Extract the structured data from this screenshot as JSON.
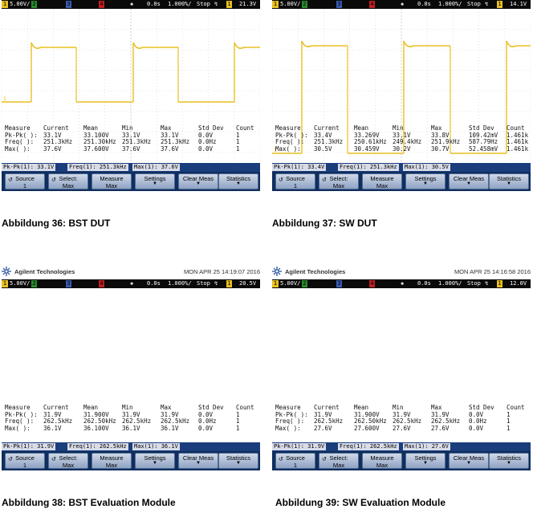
{
  "panels": [
    {
      "id": "p36",
      "brand": null,
      "topbar": {
        "ch1_scale": "5.00V/",
        "ch2": "2",
        "ch3": "3",
        "ch4": "4",
        "time_pos": "0.0s",
        "timebase": "1.000%/",
        "run_state": "Stop",
        "trig_ch": "1",
        "trig_level": "21.3V"
      },
      "measure": {
        "headers": [
          "Measure",
          "Current",
          "Mean",
          "Min",
          "Max",
          "Std Dev",
          "Count"
        ],
        "rows": [
          [
            "Pk-Pk( ):",
            "33.1V",
            "33.100V",
            "33.1V",
            "33.1V",
            "0.0V",
            "1"
          ],
          [
            "Freq( ):",
            "251.3kHz",
            "251.30kHz",
            "251.3kHz",
            "251.3kHz",
            "0.0Hz",
            "1"
          ],
          [
            "Max( ):",
            "37.6V",
            "37.600V",
            "37.6V",
            "37.6V",
            "0.0V",
            "1"
          ]
        ]
      },
      "status": [
        "Pk-Pk(1): 33.1V",
        "Freq(1): 251.3kHz",
        "Max(1): 37.6V"
      ],
      "softkeys": [
        [
          "Source",
          "1"
        ],
        [
          "Select:",
          "Max"
        ],
        [
          "Measure",
          "Max"
        ],
        [
          "Settings",
          ""
        ],
        [
          "Clear Meas",
          ""
        ],
        [
          "Statistics",
          ""
        ]
      ],
      "caption": "Abbildung 36: BST DUT"
    },
    {
      "id": "p37",
      "brand": null,
      "topbar": {
        "ch1_scale": "5.00V/",
        "ch2": "2",
        "ch3": "3",
        "ch4": "4",
        "time_pos": "0.0s",
        "timebase": "1.000%/",
        "run_state": "Stop",
        "trig_ch": "1",
        "trig_level": "14.1V"
      },
      "measure": {
        "headers": [
          "Measure",
          "Current",
          "Mean",
          "Min",
          "Max",
          "Std Dev",
          "Count"
        ],
        "rows": [
          [
            "Pk-Pk( ):",
            "33.4V",
            "33.269V",
            "33.1V",
            "33.8V",
            "109.42mV",
            "1.461k"
          ],
          [
            "Freq( ):",
            "251.3kHz",
            "250.61kHz",
            "249.4kHz",
            "251.9kHz",
            "587.79Hz",
            "1.461k"
          ],
          [
            "Max( ):",
            "30.5V",
            "30.459V",
            "30.2V",
            "30.7V",
            "52.458mV",
            "1.461k"
          ]
        ]
      },
      "status": [
        "Pk-Pk(1): 33.4V",
        "Freq(1): 251.3kHz",
        "Max(1): 30.5V"
      ],
      "softkeys": [
        [
          "Source",
          "1"
        ],
        [
          "Select:",
          "Max"
        ],
        [
          "Measure",
          "Max"
        ],
        [
          "Settings",
          ""
        ],
        [
          "Clear Meas",
          ""
        ],
        [
          "Statistics",
          ""
        ]
      ],
      "caption": "Abbildung 37: SW DUT"
    },
    {
      "id": "p38",
      "brand": {
        "name": "Agilent Technologies",
        "date": "MON APR 25 14:19:07 2016"
      },
      "topbar": {
        "ch1_scale": "5.00V/",
        "ch2": "2",
        "ch3": "3",
        "ch4": "4",
        "time_pos": "0.0s",
        "timebase": "1.000%/",
        "run_state": "Stop",
        "trig_ch": "1",
        "trig_level": "20.5V"
      },
      "measure": {
        "headers": [
          "Measure",
          "Current",
          "Mean",
          "Min",
          "Max",
          "Std Dev",
          "Count"
        ],
        "rows": [
          [
            "Pk-Pk( ):",
            "31.9V",
            "31.900V",
            "31.9V",
            "31.9V",
            "0.0V",
            "1"
          ],
          [
            "Freq( ):",
            "262.5kHz",
            "262.50kHz",
            "262.5kHz",
            "262.5kHz",
            "0.0Hz",
            "1"
          ],
          [
            "Max( ):",
            "36.1V",
            "36.100V",
            "36.1V",
            "36.1V",
            "0.0V",
            "1"
          ]
        ]
      },
      "status": [
        "Pk-Pk(1): 31.9V",
        "Freq(1): 262.5kHz",
        "Max(1): 36.1V"
      ],
      "softkeys": [
        [
          "Source",
          "1"
        ],
        [
          "Select:",
          "Max"
        ],
        [
          "Measure",
          "Max"
        ],
        [
          "Settings",
          ""
        ],
        [
          "Clear Meas",
          ""
        ],
        [
          "Statistics",
          ""
        ]
      ],
      "caption": "Abbildung 38: BST Evaluation Module"
    },
    {
      "id": "p39",
      "brand": {
        "name": "Agilent Technologies",
        "date": "MON APR 25 14:16:58 2016"
      },
      "topbar": {
        "ch1_scale": "5.00V/",
        "ch2": "2",
        "ch3": "3",
        "ch4": "4",
        "time_pos": "0.0s",
        "timebase": "1.000%/",
        "run_state": "Stop",
        "trig_ch": "1",
        "trig_level": "12.0V"
      },
      "measure": {
        "headers": [
          "Measure",
          "Current",
          "Mean",
          "Min",
          "Max",
          "Std Dev",
          "Count"
        ],
        "rows": [
          [
            "Pk-Pk( ):",
            "31.9V",
            "31.900V",
            "31.9V",
            "31.9V",
            "0.0V",
            "1"
          ],
          [
            "Freq( ):",
            "262.5kHz",
            "262.50kHz",
            "262.5kHz",
            "262.5kHz",
            "0.0Hz",
            "1"
          ],
          [
            "Max( ):",
            "27.6V",
            "27.600V",
            "27.6V",
            "27.6V",
            "0.0V",
            "1"
          ]
        ]
      },
      "status": [
        "Pk-Pk(1): 31.9V",
        "Freq(1): 262.5kHz",
        "Max(1): 27.6V"
      ],
      "softkeys": [
        [
          "Source",
          "1"
        ],
        [
          "Select:",
          "Max"
        ],
        [
          "Measure",
          "Max"
        ],
        [
          "Settings",
          ""
        ],
        [
          "Clear Meas",
          ""
        ],
        [
          "Statistics",
          ""
        ]
      ],
      "caption": "Abbildung 39: SW Evaluation Module"
    }
  ],
  "colors": {
    "trace": "#e8c020",
    "grid": "#cfcfcf",
    "topbar_bg": "#0a0a0a",
    "softkey_bg": "#0f2e5e"
  }
}
